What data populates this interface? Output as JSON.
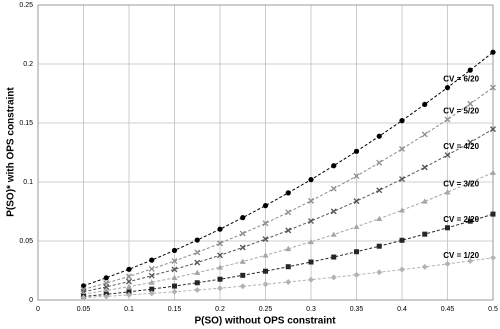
{
  "chart_data": {
    "type": "line",
    "x_label": "P(SO) without OPS constraint",
    "y_label": "P(SO)* with OPS constraint",
    "x": [
      0.05,
      0.075,
      0.1,
      0.125,
      0.15,
      0.175,
      0.2,
      0.225,
      0.25,
      0.275,
      0.3,
      0.325,
      0.35,
      0.375,
      0.4,
      0.425,
      0.45,
      0.475,
      0.5
    ],
    "xlim": [
      0,
      0.5
    ],
    "xticks": [
      0,
      0.05,
      0.1,
      0.15,
      0.2,
      0.25,
      0.3,
      0.35,
      0.4,
      0.45,
      0.5
    ],
    "ylim": [
      0,
      0.25
    ],
    "yticks": [
      0,
      0.05,
      0.1,
      0.15,
      0.2,
      0.25
    ],
    "grid": true,
    "series": [
      {
        "name": "CV = 6/20",
        "color": "#000000",
        "marker": "circle",
        "values": [
          0.012,
          0.0188,
          0.026,
          0.0338,
          0.042,
          0.0508,
          0.06,
          0.0698,
          0.08,
          0.0908,
          0.102,
          0.1138,
          0.126,
          0.1388,
          0.152,
          0.1658,
          0.18,
          0.1948,
          0.21
        ]
      },
      {
        "name": "CV = 5/20",
        "color": "#8c8c8c",
        "marker": "cross",
        "values": [
          0.009,
          0.0143,
          0.02,
          0.0263,
          0.033,
          0.0403,
          0.048,
          0.0563,
          0.065,
          0.0743,
          0.084,
          0.0943,
          0.105,
          0.1163,
          0.128,
          0.1403,
          0.153,
          0.1663,
          0.18
        ]
      },
      {
        "name": "CV = 4/20",
        "color": "#555555",
        "marker": "cross",
        "values": [
          0.007,
          0.0111,
          0.0156,
          0.0206,
          0.0259,
          0.0317,
          0.0379,
          0.0445,
          0.0516,
          0.059,
          0.0669,
          0.0751,
          0.0838,
          0.093,
          0.1025,
          0.1124,
          0.1228,
          0.1336,
          0.1448
        ]
      },
      {
        "name": "CV = 3/20",
        "color": "#a6a6a6",
        "marker": "triangle",
        "values": [
          0.005,
          0.008,
          0.0113,
          0.0149,
          0.0189,
          0.0231,
          0.0277,
          0.0326,
          0.0379,
          0.0434,
          0.0493,
          0.0555,
          0.0621,
          0.0689,
          0.0761,
          0.0836,
          0.0914,
          0.0995,
          0.108
        ]
      },
      {
        "name": "CV = 2/20",
        "color": "#262626",
        "marker": "square",
        "values": [
          0.003,
          0.0048,
          0.0069,
          0.0092,
          0.0118,
          0.0146,
          0.0176,
          0.0209,
          0.0244,
          0.0282,
          0.0322,
          0.0364,
          0.0409,
          0.0456,
          0.0506,
          0.0558,
          0.0612,
          0.0668,
          0.0728
        ]
      },
      {
        "name": "CV = 1/20",
        "color": "#b3b3b3",
        "marker": "diamond",
        "values": [
          0.002,
          0.0031,
          0.0043,
          0.0056,
          0.007,
          0.0085,
          0.01,
          0.0117,
          0.0134,
          0.0153,
          0.0172,
          0.0192,
          0.0213,
          0.0235,
          0.0258,
          0.0281,
          0.0306,
          0.0331,
          0.0358
        ]
      }
    ]
  }
}
